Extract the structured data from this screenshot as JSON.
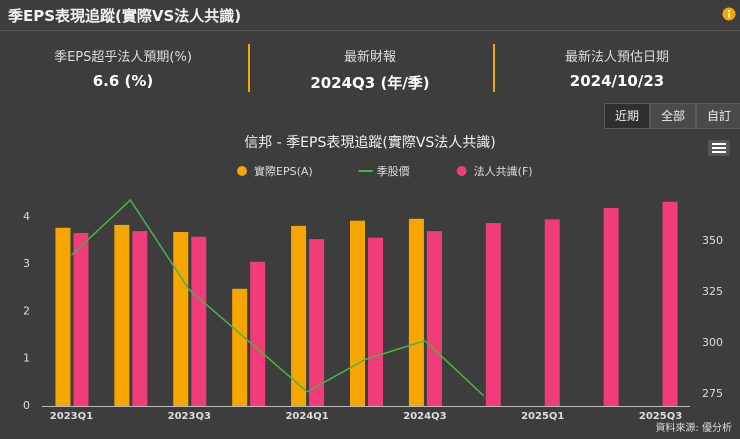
{
  "header": {
    "title": "季EPS表現追蹤(實際VS法人共識)"
  },
  "stats": [
    {
      "label": "季EPS超乎法人預期(%)",
      "value": "6.6 (%)"
    },
    {
      "label": "最新財報",
      "value": "2024Q3 (年/季)"
    },
    {
      "label": "最新法人預估日期",
      "value": "2024/10/23"
    }
  ],
  "buttons": [
    "近期",
    "全部",
    "自訂"
  ],
  "footer": "資料來源: 優分析",
  "chart_data": {
    "type": "bar",
    "title": "信邦 - 季EPS表現追蹤(實際VS法人共識)",
    "categories": [
      "2023Q1",
      null,
      "2023Q3",
      null,
      "2024Q1",
      null,
      "2024Q3",
      null,
      "2025Q1",
      null,
      "2025Q3"
    ],
    "series": [
      {
        "name": "實際EPS(A)",
        "type": "bar",
        "color": "#f5a700",
        "values": [
          3.77,
          3.83,
          3.68,
          2.48,
          3.81,
          3.92,
          3.96,
          null,
          null,
          null,
          null
        ]
      },
      {
        "name": "季股價",
        "type": "line",
        "axis": "y2",
        "color": "#4caf50",
        "values": [
          343,
          370,
          326,
          301,
          276,
          292,
          301,
          274,
          null,
          null,
          null
        ]
      },
      {
        "name": "法人共識(F)",
        "type": "bar",
        "color": "#f03c78",
        "values": [
          3.66,
          3.7,
          3.58,
          3.05,
          3.53,
          3.56,
          3.7,
          3.87,
          3.95,
          4.19,
          4.32
        ]
      }
    ],
    "ylim": [
      0,
      4.4
    ],
    "yticks": [
      0,
      1,
      2,
      3,
      4
    ],
    "y2lim": [
      269,
      371
    ],
    "y2ticks": [
      275,
      300,
      325,
      350
    ],
    "grid": false
  }
}
